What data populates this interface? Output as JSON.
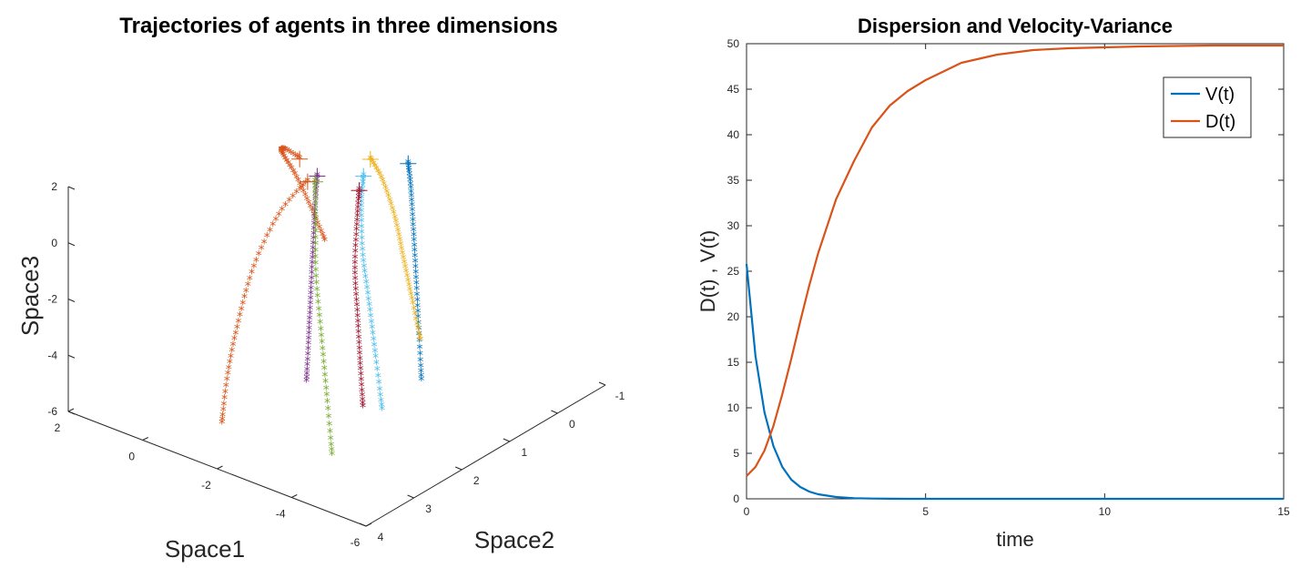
{
  "chart_data": [
    {
      "type": "scatter",
      "title": "Trajectories of agents in three dimensions",
      "xlabel": "Space1",
      "ylabel": "Space2",
      "zlabel": "Space3",
      "x_ticks": [
        "2",
        "0",
        "-2",
        "-4",
        "-6"
      ],
      "y_ticks": [
        "4",
        "3",
        "2",
        "1",
        "0",
        "-1"
      ],
      "z_ticks": [
        "2",
        "0",
        "-2",
        "-4",
        "-6"
      ],
      "xlim": [
        -6,
        2
      ],
      "ylim": [
        -1,
        4
      ],
      "zlim": [
        -6,
        2
      ],
      "marker": "*",
      "start_marker": "+",
      "series": [
        {
          "color": "#0072BD",
          "points": [
            [
              -2.5,
              0.4,
              1.5
            ],
            [
              -2.7,
              0.5,
              0.8
            ],
            [
              -2.9,
              0.6,
              -0.5
            ],
            [
              -3.1,
              0.7,
              -2.0
            ],
            [
              -3.3,
              0.8,
              -3.6
            ],
            [
              -3.5,
              0.9,
              -5.2
            ]
          ]
        },
        {
          "color": "#D95319",
          "points": [
            [
              -1.0,
              1.5,
              2.0
            ],
            [
              -0.2,
              1.2,
              1.6
            ],
            [
              0.5,
              0.7,
              0.6
            ],
            [
              0.8,
              0.2,
              -0.8
            ],
            [
              0.9,
              -0.2,
              -2.4
            ],
            [
              0.9,
              -0.5,
              -3.9
            ]
          ]
        },
        {
          "color": "#EDB120",
          "points": [
            [
              -2.0,
              0.8,
              1.8
            ],
            [
              -2.2,
              0.7,
              1.0
            ],
            [
              -2.4,
              0.6,
              -0.3
            ],
            [
              -2.5,
              0.5,
              -1.8
            ],
            [
              -2.6,
              0.4,
              -3.3
            ],
            [
              -2.7,
              0.3,
              -4.8
            ]
          ]
        },
        {
          "color": "#7E2F8E",
          "points": [
            [
              -1.6,
              1.6,
              1.8
            ],
            [
              -1.8,
              1.8,
              1.0
            ],
            [
              -2.0,
              2.0,
              -0.2
            ],
            [
              -2.2,
              2.2,
              -1.5
            ],
            [
              -2.4,
              2.4,
              -2.8
            ],
            [
              -2.6,
              2.6,
              -4.0
            ]
          ]
        },
        {
          "color": "#77AC30",
          "points": [
            [
              -1.8,
              1.8,
              1.9
            ],
            [
              -2.2,
              2.1,
              1.0
            ],
            [
              -2.6,
              2.4,
              -0.5
            ],
            [
              -3.0,
              2.6,
              -2.2
            ],
            [
              -3.4,
              2.8,
              -3.9
            ],
            [
              -3.8,
              3.0,
              -5.6
            ]
          ]
        },
        {
          "color": "#4DBEEE",
          "points": [
            [
              -2.2,
              1.1,
              1.6
            ],
            [
              -2.4,
              1.3,
              0.8
            ],
            [
              -2.7,
              1.5,
              -0.6
            ],
            [
              -3.0,
              1.6,
              -2.1
            ],
            [
              -3.3,
              1.7,
              -3.7
            ],
            [
              -3.6,
              1.8,
              -5.3
            ]
          ]
        },
        {
          "color": "#A2142F",
          "points": [
            [
              -2.6,
              1.5,
              1.7
            ],
            [
              -2.8,
              1.7,
              0.9
            ],
            [
              -3.0,
              1.9,
              -0.5
            ],
            [
              -3.2,
              2.0,
              -2.0
            ],
            [
              -3.4,
              2.1,
              -3.5
            ],
            [
              -3.6,
              2.2,
              -4.8
            ]
          ]
        },
        {
          "color": "#D95319",
          "points": [
            [
              -1.6,
              1.8,
              1.8
            ],
            [
              -1.6,
              2.4,
              1.2
            ],
            [
              -1.7,
              3.0,
              0.0
            ],
            [
              -1.8,
              3.4,
              -1.5
            ],
            [
              -1.9,
              3.7,
              -3.0
            ],
            [
              -2.0,
              3.9,
              -4.5
            ]
          ]
        }
      ]
    },
    {
      "type": "line",
      "title": "Dispersion and Velocity-Variance",
      "xlabel": "time",
      "ylabel": "D(t) ,  V(t)",
      "xlim": [
        0,
        15
      ],
      "ylim": [
        0,
        50
      ],
      "x_ticks": [
        0,
        5,
        10,
        15
      ],
      "y_ticks": [
        0,
        5,
        10,
        15,
        20,
        25,
        30,
        35,
        40,
        45,
        50
      ],
      "legend_position": "top-right",
      "x": [
        0,
        0.25,
        0.5,
        0.75,
        1,
        1.25,
        1.5,
        1.75,
        2,
        2.5,
        3,
        3.5,
        4,
        4.5,
        5,
        6,
        7,
        8,
        9,
        10,
        11,
        12,
        13,
        14,
        15
      ],
      "series": [
        {
          "name": "V(t)",
          "color": "#0072BD",
          "values": [
            25.8,
            15.7,
            9.5,
            5.8,
            3.5,
            2.1,
            1.3,
            0.8,
            0.5,
            0.2,
            0.07,
            0.03,
            0.01,
            0,
            0,
            0,
            0,
            0,
            0,
            0,
            0,
            0,
            0,
            0,
            0
          ]
        },
        {
          "name": "D(t)",
          "color": "#D95319",
          "values": [
            2.5,
            3.5,
            5.3,
            8.0,
            11.5,
            15.4,
            19.5,
            23.4,
            27.0,
            32.9,
            37.1,
            40.8,
            43.2,
            44.8,
            46.0,
            47.9,
            48.8,
            49.3,
            49.5,
            49.6,
            49.7,
            49.75,
            49.8,
            49.8,
            49.8
          ]
        }
      ]
    }
  ]
}
